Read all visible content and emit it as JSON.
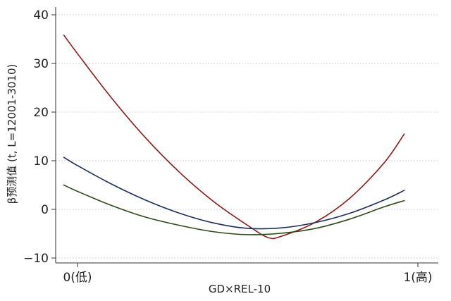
{
  "chart_data": {
    "type": "line",
    "title": "",
    "xlabel": "GD×REL-10",
    "ylabel": "β预测值 (t, L=12001-3010)",
    "x_ticks": [
      {
        "value": 0,
        "label": "0(低)"
      },
      {
        "value": 1,
        "label": "1(高)"
      }
    ],
    "y_ticks": [
      {
        "value": -10,
        "label": "−10"
      },
      {
        "value": 0,
        "label": "0"
      },
      {
        "value": 10,
        "label": "10"
      },
      {
        "value": 20,
        "label": "20"
      },
      {
        "value": 30,
        "label": "30"
      },
      {
        "value": 40,
        "label": "40"
      }
    ],
    "xlim": [
      -0.05,
      1.05
    ],
    "ylim": [
      -11,
      41
    ],
    "grid": true,
    "legend": "none",
    "series": [
      {
        "color": "#8b1a1a",
        "x": [
          -0.04,
          0.0,
          0.1,
          0.2,
          0.3,
          0.4,
          0.5,
          0.56,
          0.6,
          0.7,
          0.8,
          0.9,
          0.96
        ],
        "values": [
          35.8,
          32.0,
          22.9,
          14.7,
          7.6,
          1.6,
          -3.3,
          -5.8,
          -5.5,
          -2.6,
          2.3,
          9.5,
          15.5
        ]
      },
      {
        "color": "#1a2e5a",
        "x": [
          -0.04,
          0.0,
          0.1,
          0.2,
          0.3,
          0.4,
          0.5,
          0.6,
          0.7,
          0.8,
          0.9,
          0.96
        ],
        "values": [
          10.7,
          9.0,
          5.2,
          1.9,
          -0.8,
          -2.8,
          -3.9,
          -3.8,
          -2.7,
          -0.8,
          1.9,
          3.9
        ]
      },
      {
        "color": "#2e4a1a",
        "x": [
          -0.04,
          0.0,
          0.1,
          0.2,
          0.3,
          0.4,
          0.5,
          0.6,
          0.7,
          0.8,
          0.9,
          0.96
        ],
        "values": [
          5.0,
          3.7,
          0.8,
          -1.6,
          -3.3,
          -4.6,
          -5.2,
          -4.9,
          -3.9,
          -2.0,
          0.5,
          1.8
        ]
      }
    ]
  }
}
